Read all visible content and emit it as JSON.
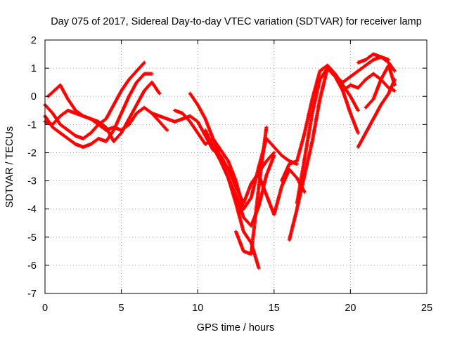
{
  "chart_data": {
    "type": "scatter",
    "title": "Day 075 of 2017, Sidereal Day-to-day VTEC variation (SDTVAR) for receiver lamp",
    "xlabel": "GPS time / hours",
    "ylabel": "SDTVAR / TECUs",
    "xlim": [
      0,
      25
    ],
    "ylim": [
      -7,
      2
    ],
    "xticks": [
      0,
      5,
      10,
      15,
      20,
      25
    ],
    "yticks": [
      -7,
      -6,
      -5,
      -4,
      -3,
      -2,
      -1,
      0,
      1,
      2
    ],
    "grid": true,
    "marker": "plus",
    "color": "#ff0000",
    "series": [
      {
        "x": [
          0.0,
          0.5,
          1.0,
          1.5,
          2.0,
          2.5,
          3.0,
          3.5,
          4.0,
          4.5,
          5.0,
          5.5,
          6.0,
          6.5
        ],
        "y": [
          -0.3,
          -0.6,
          -1.0,
          -1.2,
          -1.4,
          -1.5,
          -1.3,
          -1.0,
          -0.8,
          -0.3,
          0.2,
          0.6,
          0.9,
          1.2
        ]
      },
      {
        "x": [
          0.0,
          0.5,
          1.0,
          1.5,
          2.0,
          2.5,
          3.0,
          3.5,
          4.0,
          4.5,
          5.0,
          5.5,
          6.0,
          6.5,
          7.0
        ],
        "y": [
          -0.7,
          -1.1,
          -1.3,
          -1.5,
          -1.7,
          -1.8,
          -1.7,
          -1.5,
          -1.6,
          -1.2,
          -0.6,
          0.0,
          0.5,
          0.8,
          0.8
        ]
      },
      {
        "x": [
          0.2,
          0.6,
          1.0,
          1.5,
          2.0,
          2.5,
          3.0,
          3.5,
          4.0,
          4.5,
          5.0,
          5.5,
          6.0,
          6.5,
          7.0,
          7.5
        ],
        "y": [
          0.0,
          0.2,
          0.4,
          -0.1,
          -0.5,
          -0.7,
          -0.8,
          -0.9,
          -1.1,
          -1.6,
          -1.3,
          -0.8,
          -0.3,
          0.2,
          0.5,
          0.1
        ]
      },
      {
        "x": [
          0.0,
          0.5,
          1.0,
          1.5,
          2.0,
          2.5,
          3.0,
          3.5,
          4.0,
          4.5,
          5.0,
          5.5,
          6.0,
          6.5,
          7.0,
          7.5,
          8.0
        ],
        "y": [
          -0.9,
          -1.0,
          -0.7,
          -0.5,
          -0.6,
          -0.7,
          -0.8,
          -1.0,
          -1.2,
          -1.1,
          -1.2,
          -1.0,
          -0.6,
          -0.4,
          -0.6,
          -0.9,
          -1.2
        ]
      },
      {
        "x": [
          7.0,
          7.5,
          8.0,
          8.5,
          9.0,
          9.5,
          10.0,
          10.5,
          11.0,
          11.5,
          12.0,
          12.5,
          13.0,
          13.5,
          14.0,
          14.5,
          15.0
        ],
        "y": [
          -0.6,
          -0.7,
          -0.8,
          -0.9,
          -0.8,
          -0.7,
          -0.9,
          -1.4,
          -1.9,
          -2.1,
          -2.6,
          -3.2,
          -3.8,
          -3.1,
          -2.7,
          -2.3,
          -2.0
        ]
      },
      {
        "x": [
          9.5,
          10.0,
          10.5,
          11.0,
          11.5,
          12.0,
          12.5,
          13.0,
          13.5,
          14.0
        ],
        "y": [
          0.1,
          -0.3,
          -0.8,
          -1.5,
          -2.2,
          -2.9,
          -3.8,
          -4.8,
          -5.2,
          -6.1
        ]
      },
      {
        "x": [
          8.5,
          9.0,
          9.5,
          10.0,
          10.5,
          11.0,
          11.5,
          12.0,
          12.5,
          13.0,
          13.5,
          14.0,
          14.5,
          15.0,
          15.5,
          16.0,
          16.5
        ],
        "y": [
          -0.5,
          -0.6,
          -0.9,
          -1.3,
          -1.7,
          -1.5,
          -1.9,
          -2.3,
          -3.0,
          -4.0,
          -3.6,
          -2.5,
          -1.5,
          -1.8,
          -2.1,
          -2.3,
          -2.4
        ]
      },
      {
        "x": [
          10.5,
          11.0,
          11.5,
          12.0,
          12.5,
          13.0,
          13.5,
          14.0,
          14.5,
          15.0
        ],
        "y": [
          -1.2,
          -1.8,
          -2.3,
          -2.9,
          -3.5,
          -4.3,
          -4.6,
          -3.9,
          -2.8,
          -2.1
        ]
      },
      {
        "x": [
          12.5,
          13.0,
          13.5,
          14.0,
          14.5
        ],
        "y": [
          -4.8,
          -5.5,
          -5.6,
          -3.2,
          -1.1
        ]
      },
      {
        "x": [
          14.0,
          14.5,
          15.0,
          15.5,
          16.0,
          16.5,
          17.0
        ],
        "y": [
          -2.8,
          -3.5,
          -4.2,
          -3.2,
          -2.6,
          -2.9,
          -3.4
        ]
      },
      {
        "x": [
          15.5,
          16.0,
          16.5,
          17.0,
          17.5,
          18.0,
          18.5,
          19.0,
          19.5,
          20.0,
          20.5
        ],
        "y": [
          -3.0,
          -2.4,
          -2.3,
          -1.3,
          -0.1,
          0.9,
          1.1,
          0.8,
          0.4,
          0.0,
          -0.5
        ]
      },
      {
        "x": [
          16.0,
          16.5,
          17.0,
          17.5,
          18.0,
          18.5,
          19.0,
          19.5,
          20.0,
          20.5
        ],
        "y": [
          -5.1,
          -4.0,
          -2.8,
          -1.6,
          -0.1,
          1.0,
          0.7,
          0.2,
          -0.6,
          -1.3
        ]
      },
      {
        "x": [
          16.5,
          17.0,
          17.5,
          18.0,
          18.5,
          19.0,
          19.5,
          20.0,
          20.5,
          21.0,
          21.5,
          22.0,
          22.5
        ],
        "y": [
          -3.8,
          -2.2,
          -0.6,
          0.6,
          1.0,
          0.7,
          0.5,
          0.7,
          0.9,
          1.1,
          1.3,
          1.4,
          1.3
        ]
      },
      {
        "x": [
          20.5,
          21.0,
          21.5,
          22.0,
          22.5,
          22.9
        ],
        "y": [
          -1.8,
          -1.3,
          -0.8,
          -0.3,
          0.1,
          0.6
        ]
      },
      {
        "x": [
          19.5,
          20.0,
          20.5,
          21.0,
          21.5,
          22.0,
          22.5,
          22.9
        ],
        "y": [
          0.2,
          0.4,
          0.3,
          0.6,
          0.8,
          0.6,
          0.3,
          0.2
        ]
      },
      {
        "x": [
          20.5,
          21.0,
          21.5,
          22.0,
          22.5,
          22.9
        ],
        "y": [
          1.2,
          1.3,
          1.5,
          1.4,
          1.2,
          0.9
        ]
      },
      {
        "x": [
          21.0,
          21.5,
          22.0,
          22.5,
          22.9
        ],
        "y": [
          -0.4,
          -0.1,
          0.6,
          1.1,
          0.4
        ]
      }
    ]
  }
}
